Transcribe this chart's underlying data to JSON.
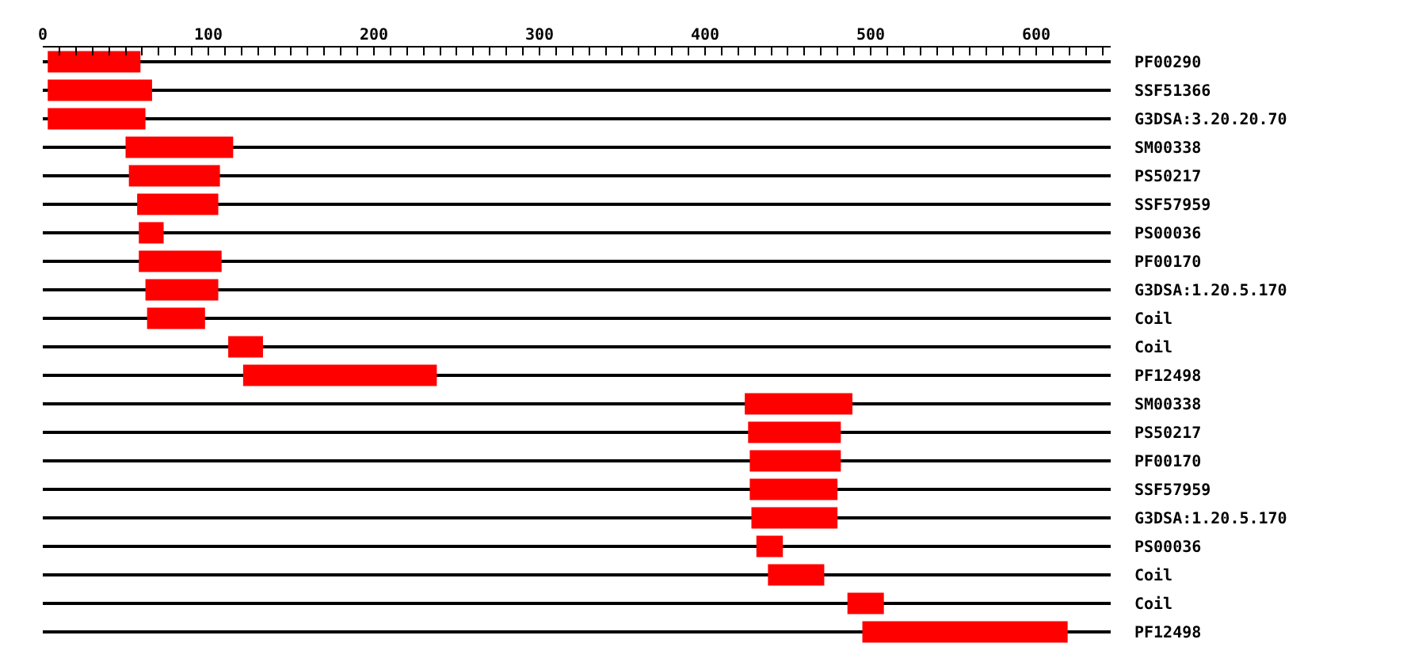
{
  "chart_data": {
    "type": "bar",
    "orientation": "horizontal",
    "categories": [
      "PF00290",
      "SSF51366",
      "G3DSA:3.20.20.70",
      "SM00338",
      "PS50217",
      "SSF57959",
      "PS00036",
      "PF00170",
      "G3DSA:1.20.5.170",
      "Coil",
      "Coil",
      "PF12498",
      "SM00338",
      "PS50217",
      "PF00170",
      "SSF57959",
      "G3DSA:1.20.5.170",
      "PS00036",
      "Coil",
      "Coil",
      "PF12498"
    ],
    "base": [
      3,
      3,
      3,
      50,
      52,
      57,
      58,
      58,
      62,
      63,
      112,
      121,
      424,
      426,
      427,
      427,
      428,
      431,
      438,
      486,
      495
    ],
    "values": [
      56,
      63,
      59,
      65,
      55,
      49,
      15,
      50,
      44,
      35,
      21,
      117,
      65,
      56,
      55,
      53,
      52,
      16,
      34,
      22,
      124
    ],
    "color": "#ff0000",
    "xlim": [
      0,
      645
    ],
    "xticks": [
      0,
      {
        "value": 10,
        "label": null
      },
      {
        "value": 20,
        "label": null
      },
      {
        "value": 30,
        "label": null
      },
      {
        "value": 40,
        "label": null
      },
      {
        "value": 50,
        "label": null
      },
      {
        "value": 60,
        "label": null
      },
      {
        "value": 70,
        "label": null
      },
      {
        "value": 80,
        "label": null
      },
      {
        "value": 90,
        "label": null
      },
      100,
      {
        "value": 110,
        "label": null
      },
      {
        "value": 120,
        "label": null
      },
      {
        "value": 130,
        "label": null
      },
      {
        "value": 140,
        "label": null
      },
      {
        "value": 150,
        "label": null
      },
      {
        "value": 160,
        "label": null
      },
      {
        "value": 170,
        "label": null
      },
      {
        "value": 180,
        "label": null
      },
      {
        "value": 190,
        "label": null
      },
      200,
      {
        "value": 210,
        "label": null
      },
      {
        "value": 220,
        "label": null
      },
      {
        "value": 230,
        "label": null
      },
      {
        "value": 240,
        "label": null
      },
      {
        "value": 250,
        "label": null
      },
      {
        "value": 260,
        "label": null
      },
      {
        "value": 270,
        "label": null
      },
      {
        "value": 280,
        "label": null
      },
      {
        "value": 290,
        "label": null
      },
      300,
      {
        "value": 310,
        "label": null
      },
      {
        "value": 320,
        "label": null
      },
      {
        "value": 330,
        "label": null
      },
      {
        "value": 340,
        "label": null
      },
      {
        "value": 350,
        "label": null
      },
      {
        "value": 360,
        "label": null
      },
      {
        "value": 370,
        "label": null
      },
      {
        "value": 380,
        "label": null
      },
      {
        "value": 390,
        "label": null
      },
      400,
      {
        "value": 410,
        "label": null
      },
      {
        "value": 420,
        "label": null
      },
      {
        "value": 430,
        "label": null
      },
      {
        "value": 440,
        "label": null
      },
      {
        "value": 450,
        "label": null
      },
      {
        "value": 460,
        "label": null
      },
      {
        "value": 470,
        "label": null
      },
      {
        "value": 480,
        "label": null
      },
      {
        "value": 490,
        "label": null
      },
      500,
      {
        "value": 510,
        "label": null
      },
      {
        "value": 520,
        "label": null
      },
      {
        "value": 530,
        "label": null
      },
      {
        "value": 540,
        "label": null
      },
      {
        "value": 550,
        "label": null
      },
      {
        "value": 560,
        "label": null
      },
      {
        "value": 570,
        "label": null
      },
      {
        "value": 580,
        "label": null
      },
      {
        "value": 590,
        "label": null
      },
      600,
      {
        "value": 610,
        "label": null
      },
      {
        "value": 620,
        "label": null
      },
      {
        "value": 630,
        "label": null
      },
      {
        "value": 640,
        "label": null
      }
    ],
    "grid": "y"
  }
}
